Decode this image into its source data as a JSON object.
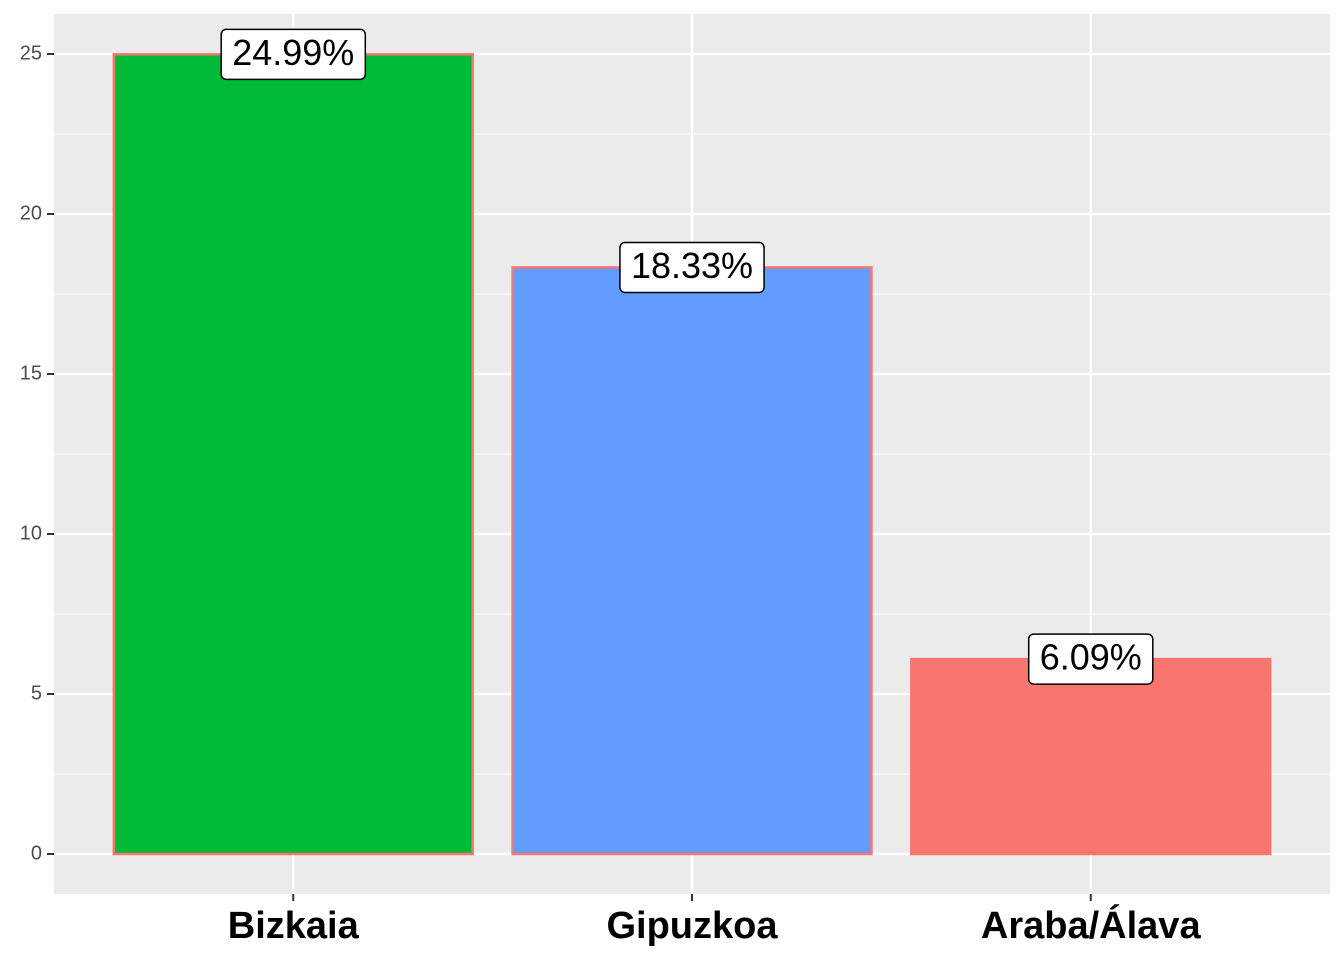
{
  "chart_data": {
    "type": "bar",
    "categories": [
      "Bizkaia",
      "Gipuzkoa",
      "Araba/Álava"
    ],
    "series": [
      {
        "values": [
          24.99,
          18.33,
          6.09
        ],
        "value_labels": [
          "24.99%",
          "18.33%",
          "6.09%"
        ],
        "colors": [
          "#00BA38",
          "#619CFF",
          "#F8766D"
        ],
        "outline": "#F8766D"
      }
    ],
    "ylim": [
      -1.25,
      26.25
    ],
    "yticks": [
      0,
      5,
      10,
      15,
      20,
      25
    ],
    "grid": true
  }
}
